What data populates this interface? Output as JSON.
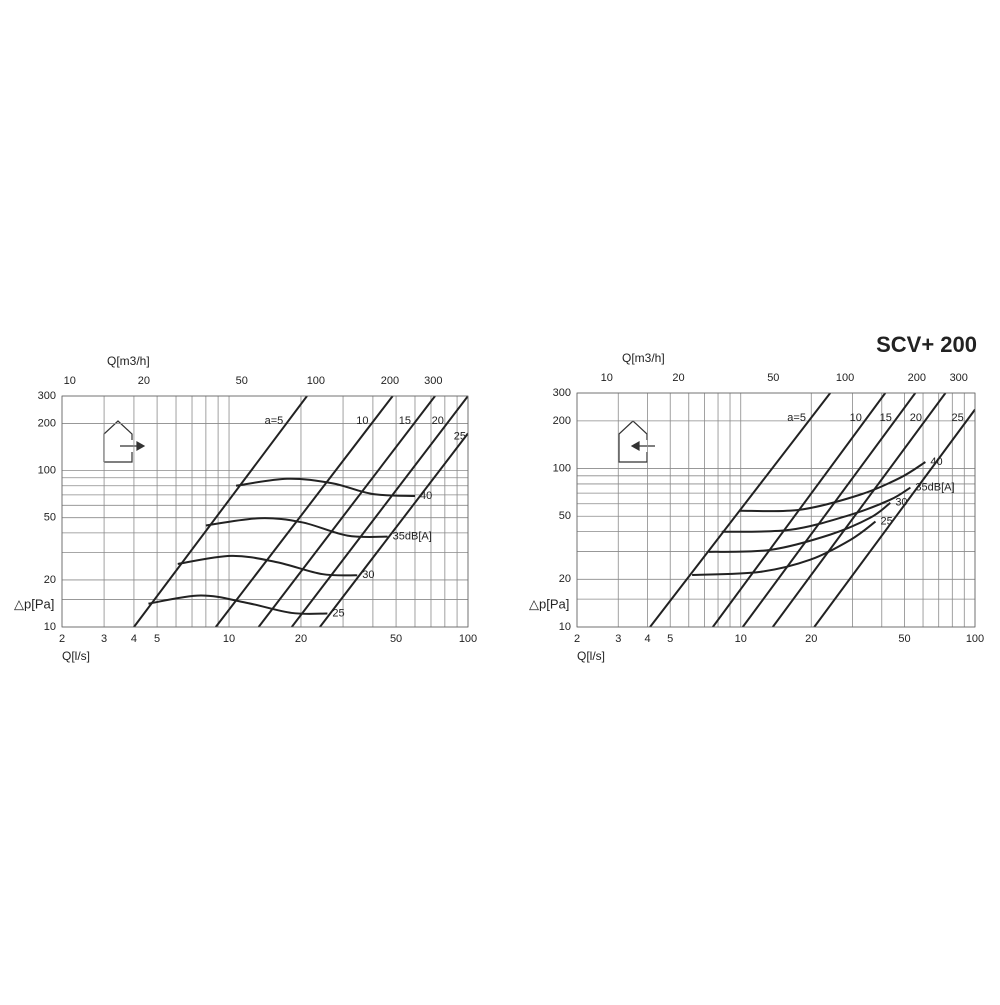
{
  "title": "SCV+ 200",
  "chart_data": [
    {
      "type": "line",
      "log_x": true,
      "log_y": true,
      "grid": true,
      "color": "#222222",
      "xlabel": "Q[l/s]",
      "x2label": "Q[m3/h]",
      "ylabel": "△p[Pa]",
      "xlim": [
        2,
        100
      ],
      "ylim": [
        10,
        300
      ],
      "x2lim": [
        9.3,
        415
      ],
      "xticks": [
        2,
        3,
        4,
        5,
        10,
        20,
        50,
        100
      ],
      "x2ticks": [
        10,
        20,
        50,
        100,
        200,
        300
      ],
      "yticks": [
        10,
        20,
        50,
        100,
        200,
        300
      ],
      "xgrid": [
        2,
        3,
        4,
        5,
        6,
        7,
        8,
        9,
        10,
        20,
        30,
        40,
        50,
        60,
        70,
        80,
        90,
        100
      ],
      "ygrid": [
        10,
        15,
        20,
        30,
        40,
        50,
        60,
        70,
        80,
        90,
        100,
        200,
        300
      ],
      "series": [
        {
          "name": "a=5",
          "x": [
            4,
            21.2
          ],
          "values": [
            10,
            300
          ]
        },
        {
          "name": "10",
          "x": [
            8.8,
            48.4
          ],
          "values": [
            10,
            300
          ]
        },
        {
          "name": "15",
          "x": [
            13.3,
            72.8
          ],
          "values": [
            10,
            300
          ]
        },
        {
          "name": "20",
          "x": [
            18.3,
            100
          ],
          "values": [
            10,
            300
          ]
        },
        {
          "name": "25",
          "x": [
            24,
            100
          ],
          "values": [
            10,
            173
          ]
        }
      ],
      "sound_series": [
        {
          "name": "40",
          "x": [
            10.7,
            17.5,
            27,
            39.9,
            60
          ],
          "values": [
            80,
            88.7,
            83,
            70.9,
            68.8
          ]
        },
        {
          "name": "35dB[A]",
          "x": [
            8,
            13.4,
            20.2,
            31.3,
            46.1
          ],
          "values": [
            44.6,
            49.6,
            46.7,
            38.4,
            37.8
          ]
        },
        {
          "name": "30",
          "x": [
            6.1,
            10.2,
            15.8,
            24.5,
            34.4
          ],
          "values": [
            25.3,
            28.5,
            26,
            21.8,
            21.4
          ]
        },
        {
          "name": "25",
          "x": [
            4.6,
            7.6,
            11.8,
            18.3,
            25.8
          ],
          "values": [
            14.1,
            15.9,
            14.3,
            12.3,
            12.2
          ]
        }
      ]
    },
    {
      "type": "line",
      "log_x": true,
      "log_y": true,
      "grid": true,
      "color": "#222222",
      "xlabel": "Q[l/s]",
      "x2label": "Q[m3/h]",
      "ylabel": "△p[Pa]",
      "xlim": [
        2,
        100
      ],
      "ylim": [
        10,
        300
      ],
      "x2lim": [
        7.5,
        351
      ],
      "xticks": [
        2,
        3,
        4,
        5,
        10,
        20,
        50,
        100
      ],
      "x2ticks": [
        10,
        20,
        50,
        100,
        200,
        300
      ],
      "yticks": [
        10,
        20,
        50,
        100,
        200,
        300
      ],
      "xgrid": [
        2,
        3,
        4,
        5,
        6,
        7,
        8,
        9,
        10,
        20,
        30,
        40,
        50,
        60,
        70,
        80,
        90,
        100
      ],
      "ygrid": [
        10,
        15,
        20,
        30,
        40,
        50,
        60,
        70,
        80,
        90,
        100,
        200,
        300
      ],
      "series": [
        {
          "name": "a=5",
          "x": [
            4.1,
            24.1
          ],
          "values": [
            10,
            300
          ]
        },
        {
          "name": "10",
          "x": [
            7.6,
            41.4
          ],
          "values": [
            10,
            300
          ]
        },
        {
          "name": "15",
          "x": [
            10.2,
            55.6
          ],
          "values": [
            10,
            300
          ]
        },
        {
          "name": "20",
          "x": [
            13.7,
            74.8
          ],
          "values": [
            10,
            300
          ]
        },
        {
          "name": "25",
          "x": [
            20.6,
            100
          ],
          "values": [
            10,
            236
          ]
        }
      ],
      "sound_series": [
        {
          "name": "40",
          "x": [
            9.9,
            17.9,
            32.4,
            48,
            61.4
          ],
          "values": [
            54.2,
            55,
            68.5,
            87.6,
            110
          ]
        },
        {
          "name": "35dB[A]",
          "x": [
            8.3,
            16.3,
            29.4,
            43.5,
            53
          ],
          "values": [
            39.9,
            41.1,
            51.1,
            63.6,
            75.9
          ]
        },
        {
          "name": "30",
          "x": [
            7.3,
            13.4,
            24.1,
            35.7,
            43.5
          ],
          "values": [
            29.8,
            30.7,
            38.3,
            48.9,
            60.8
          ]
        },
        {
          "name": "25",
          "x": [
            6.2,
            12.1,
            19.8,
            29.4,
            37.6
          ],
          "values": [
            21.3,
            22.3,
            26.6,
            35.5,
            46.3
          ]
        }
      ]
    }
  ]
}
